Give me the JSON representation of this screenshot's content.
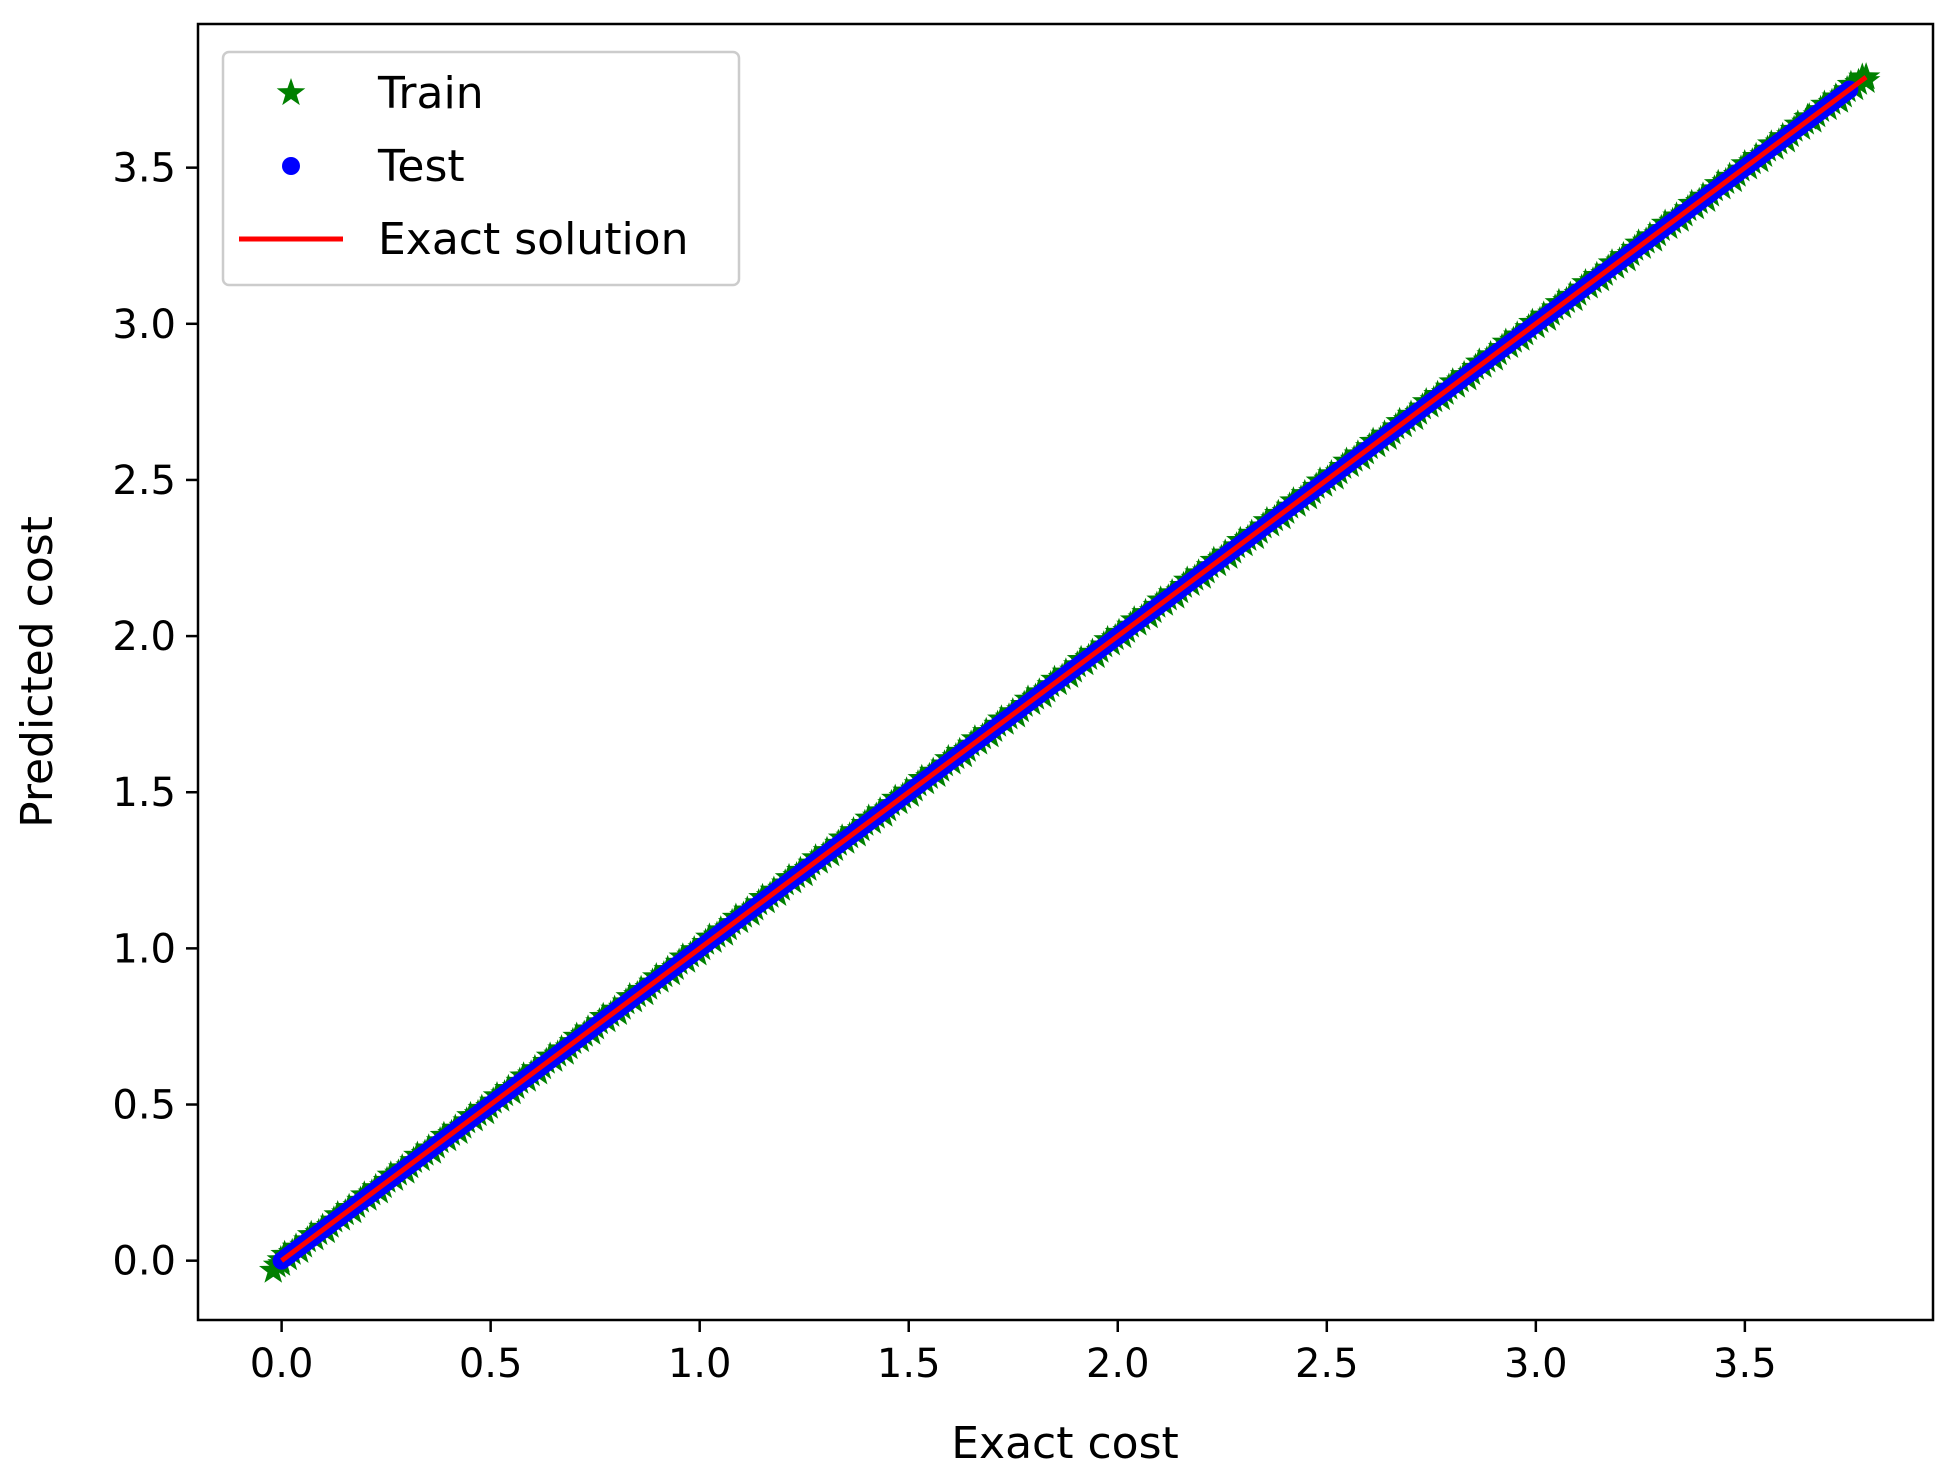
{
  "chart_data": {
    "type": "scatter",
    "title": "",
    "xlabel": "Exact cost",
    "ylabel": "Predicted cost",
    "xlim": [
      -0.2,
      3.95
    ],
    "ylim": [
      -0.19,
      3.96
    ],
    "xticks": [
      0.0,
      0.5,
      1.0,
      1.5,
      2.0,
      2.5,
      3.0,
      3.5
    ],
    "yticks": [
      0.0,
      0.5,
      1.0,
      1.5,
      2.0,
      2.5,
      3.0,
      3.5
    ],
    "xtick_labels": [
      "0.0",
      "0.5",
      "1.0",
      "1.5",
      "2.0",
      "2.5",
      "3.0",
      "3.5"
    ],
    "ytick_labels": [
      "0.0",
      "0.5",
      "1.0",
      "1.5",
      "2.0",
      "2.5",
      "3.0",
      "3.5"
    ],
    "grid": false,
    "legend_position": "top-left",
    "series": [
      {
        "name": "Train",
        "marker": "star",
        "color": "#008000",
        "x_range": [
          -0.02,
          3.79
        ],
        "y_equals_x": true,
        "note_points": [
          [
            3.79,
            3.79
          ],
          [
            3.72,
            3.72
          ],
          [
            3.65,
            3.66
          ],
          [
            0.0,
            -0.01
          ]
        ]
      },
      {
        "name": "Test",
        "marker": "circle",
        "color": "#0000ff",
        "x_range": [
          0.0,
          3.75
        ],
        "y_equals_x": true
      },
      {
        "name": "Exact solution",
        "marker": "line",
        "color": "#ff0000",
        "x": [
          0.0,
          3.79
        ],
        "y": [
          0.0,
          3.79
        ]
      }
    ]
  }
}
